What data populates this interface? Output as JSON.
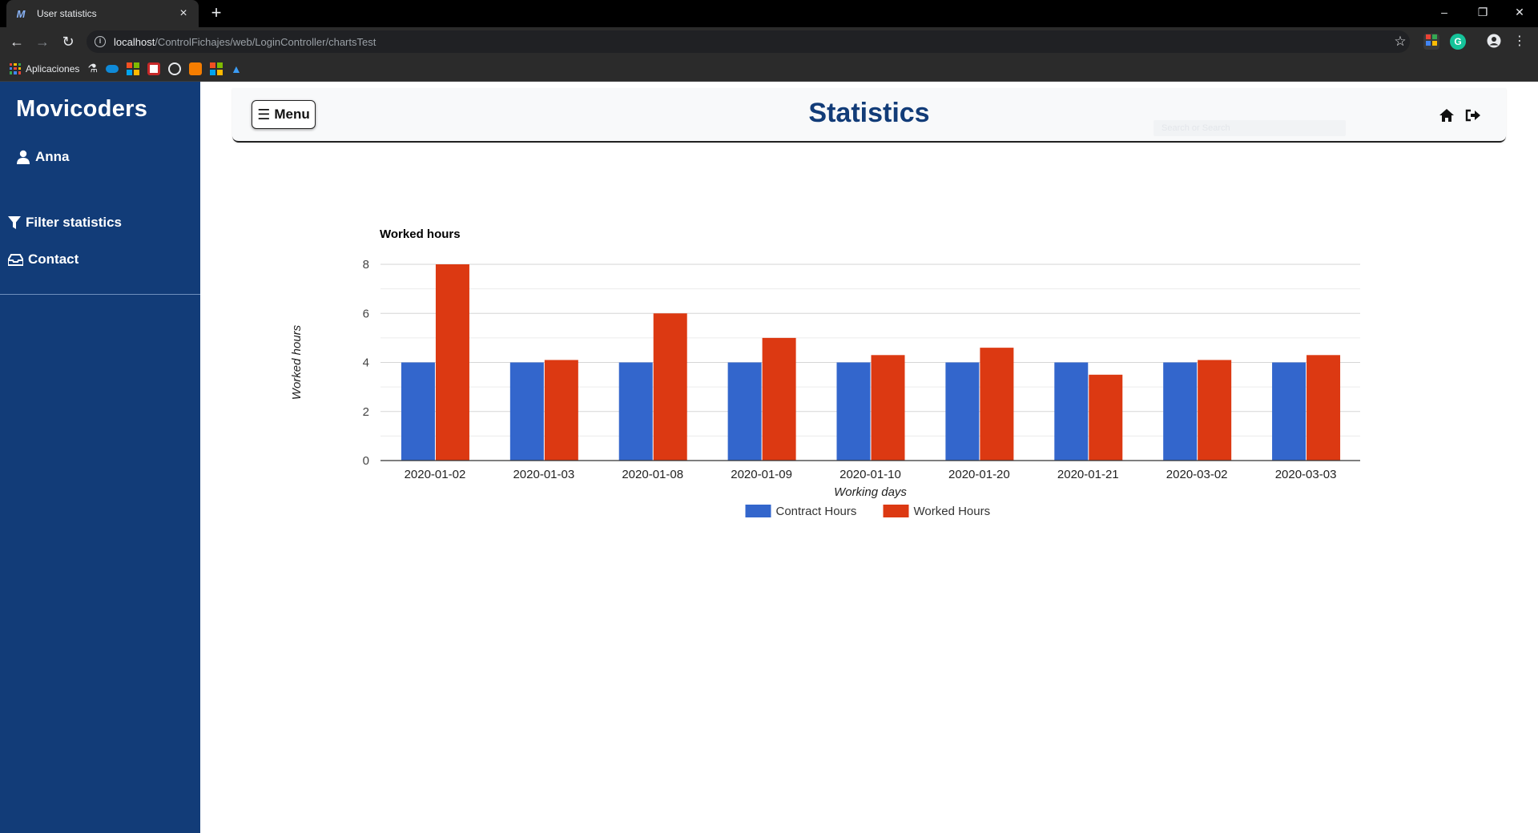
{
  "browser": {
    "tab_title": "User statistics",
    "url_host": "localhost",
    "url_path": "/ControlFichajes/web/LoginController/chartsTest",
    "bookmarks_label": "Aplicaciones"
  },
  "sidebar": {
    "brand": "Movicoders",
    "user_name": "Anna",
    "items": [
      {
        "label": "Filter statistics",
        "icon": "filter-icon"
      },
      {
        "label": "Contact",
        "icon": "inbox-icon"
      }
    ]
  },
  "header": {
    "menu_label": "Menu",
    "title": "Statistics",
    "search_placeholder": "Search or Search"
  },
  "colors": {
    "sidebar": "#123c78",
    "contract": "#3366cc",
    "worked": "#dc3912"
  },
  "chart_data": {
    "type": "bar",
    "title": "Worked hours",
    "xlabel": "Working days",
    "ylabel": "Worked hours",
    "ylim": [
      0,
      8
    ],
    "yticks": [
      0,
      2,
      4,
      6,
      8
    ],
    "categories": [
      "2020-01-02",
      "2020-01-03",
      "2020-01-08",
      "2020-01-09",
      "2020-01-10",
      "2020-01-20",
      "2020-01-21",
      "2020-03-02",
      "2020-03-03"
    ],
    "series": [
      {
        "name": "Contract Hours",
        "values": [
          4,
          4,
          4,
          4,
          4,
          4,
          4,
          4,
          4
        ]
      },
      {
        "name": "Worked Hours",
        "values": [
          8,
          4.1,
          6,
          5,
          4.3,
          4.6,
          3.5,
          4.1,
          4.3
        ]
      }
    ],
    "legend": "bottom",
    "grid": true
  }
}
